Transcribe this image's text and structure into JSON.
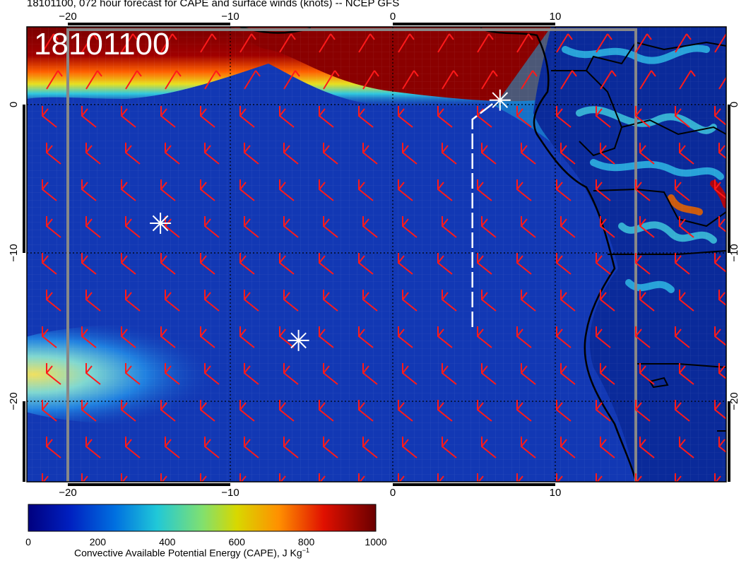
{
  "title": "18101100, 072 hour forecast for CAPE and surface winds (knots) -- NCEP GFS",
  "date_stamp": "18101100",
  "map": {
    "lon_ticks": [
      "−20",
      "−10",
      "0",
      "10"
    ],
    "lat_ticks": [
      "0",
      "−10",
      "−20"
    ],
    "lon_range": [
      -22.5,
      20.5
    ],
    "lat_range": [
      -25.5,
      5.0
    ],
    "land_color": "#0a2a9a",
    "ocean_color": "#1238b4",
    "markers": [
      {
        "name": "marker-1",
        "lon": 6.6,
        "lat": 0.3
      },
      {
        "name": "marker-2",
        "lon": -14.3,
        "lat": -8.0
      },
      {
        "name": "marker-3",
        "lon": -5.8,
        "lat": -15.9
      }
    ],
    "track": [
      [
        4.9,
        -15.0
      ],
      [
        4.9,
        -1.0
      ],
      [
        6.2,
        0.1
      ]
    ]
  },
  "colorbar": {
    "ticks": [
      "0",
      "200",
      "400",
      "600",
      "800",
      "1000"
    ],
    "label": "Convective Available Potential Energy (CAPE), J Kg",
    "label_sup": "−1",
    "colors": [
      "#00007f",
      "#0030d0",
      "#00a0e0",
      "#30d0b0",
      "#a0e060",
      "#e0d000",
      "#ff8000",
      "#e00000",
      "#7f0000"
    ]
  }
}
